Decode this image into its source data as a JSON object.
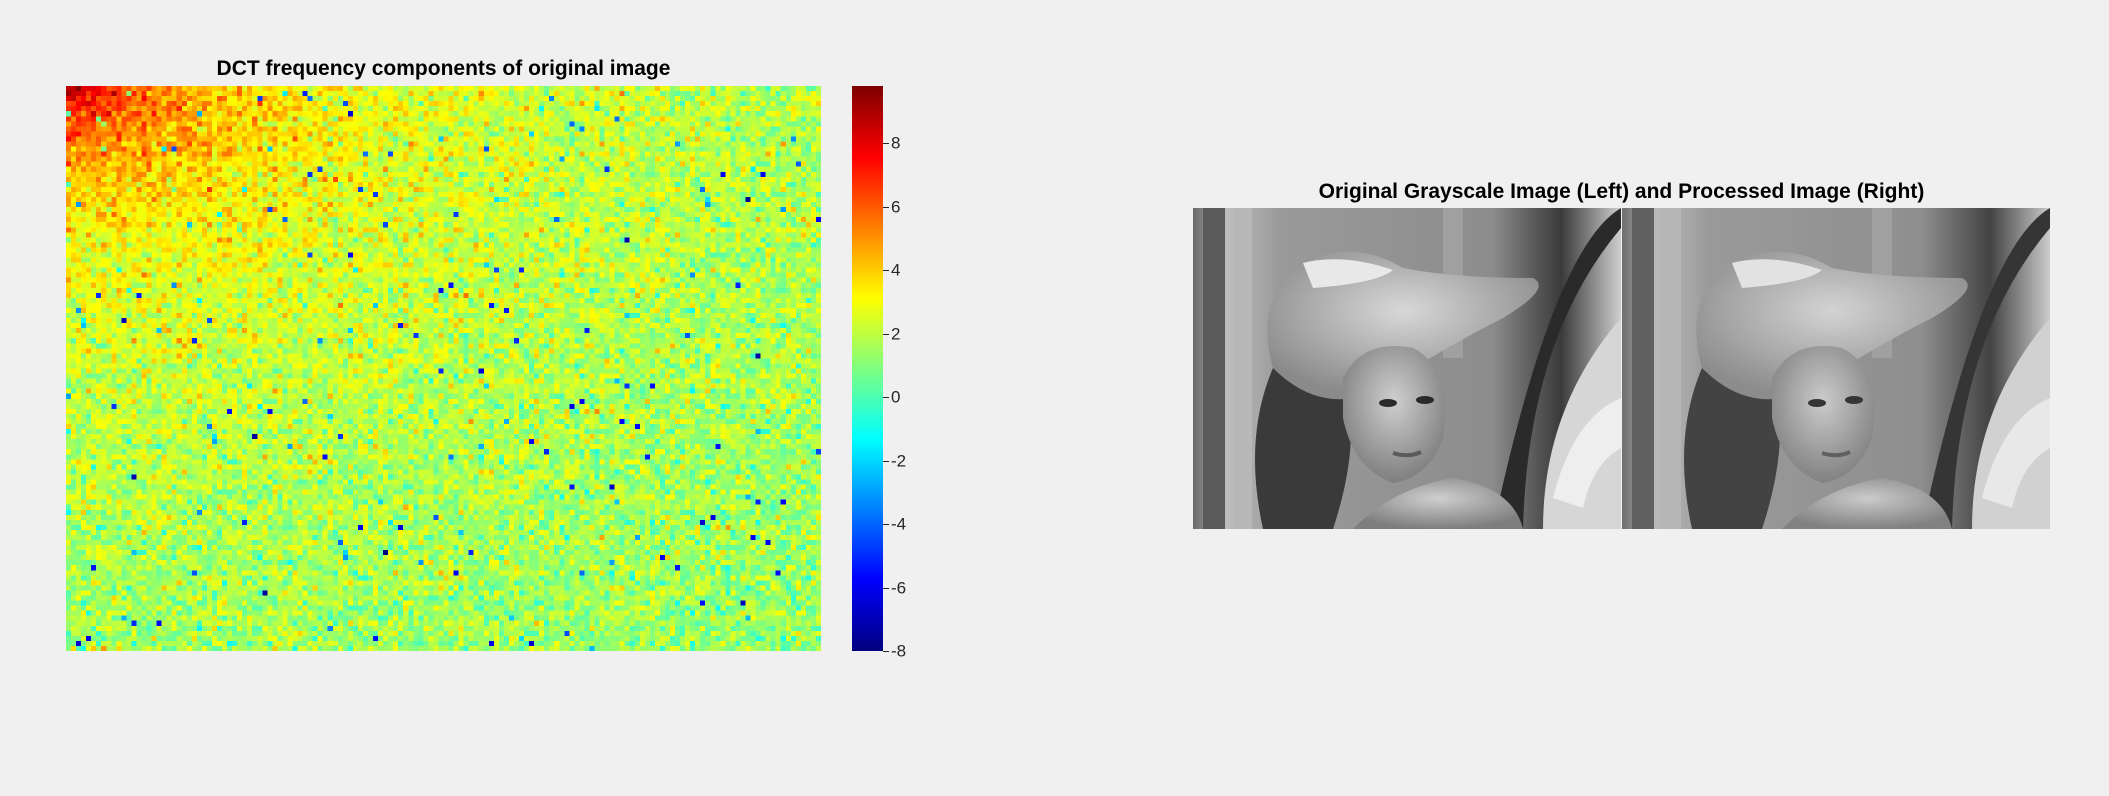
{
  "chart_data": [
    {
      "type": "heatmap",
      "title": "DCT frequency components of original image",
      "colormap": "jet",
      "colorbar": {
        "range": [
          -8,
          9.8
        ],
        "ticks": [
          -8,
          -6,
          -4,
          -2,
          0,
          2,
          4,
          6,
          8
        ],
        "tick_labels": [
          "-8",
          "-6",
          "-4",
          "-2",
          "0",
          "2",
          "4",
          "6",
          "8"
        ]
      },
      "description_values": {
        "top_left_peak": 9,
        "typical_low_frequency": 4,
        "typical_high_frequency": 1,
        "outlier_min": -8
      }
    },
    {
      "type": "image",
      "title": "Original Grayscale Image (Left) and Processed Image (Right)",
      "panels": [
        "original-grayscale",
        "processed"
      ]
    }
  ]
}
